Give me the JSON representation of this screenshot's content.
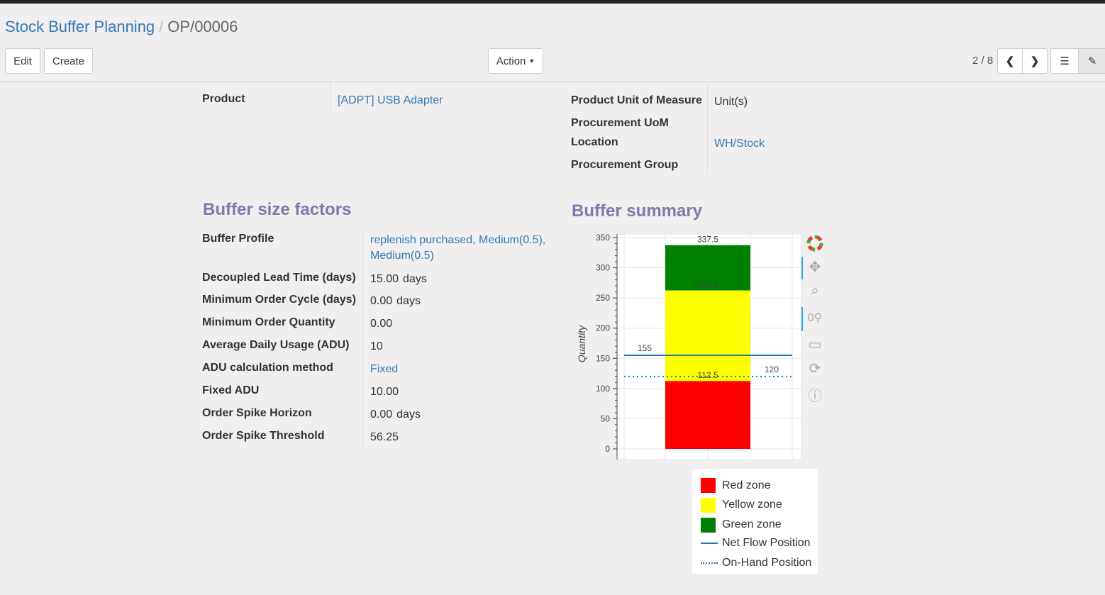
{
  "breadcrumb": {
    "parent": "Stock Buffer Planning",
    "current": "OP/00006"
  },
  "buttons": {
    "edit": "Edit",
    "create": "Create",
    "action": "Action"
  },
  "pager": {
    "value": "2 / 8"
  },
  "header_fields": {
    "product_label": "Product",
    "product_value": "[ADPT] USB Adapter",
    "uom_label": "Product Unit of Measure",
    "uom_value": "Unit(s)",
    "proc_uom_label": "Procurement UoM",
    "location_label": "Location",
    "location_value": "WH/Stock",
    "proc_group_label": "Procurement Group"
  },
  "factors": {
    "title": "Buffer size factors",
    "rows": [
      {
        "label": "Buffer Profile",
        "value": "replenish purchased, Medium(0.5), Medium(0.5)",
        "link": true
      },
      {
        "label": "Decoupled Lead Time (days)",
        "value": "15.00",
        "unit": "days"
      },
      {
        "label": "Minimum Order Cycle (days)",
        "value": "0.00",
        "unit": "days"
      },
      {
        "label": "Minimum Order Quantity",
        "value": "0.00"
      },
      {
        "label": "Average Daily Usage (ADU)",
        "value": "10"
      },
      {
        "label": "ADU calculation method",
        "value": "Fixed",
        "link": true
      },
      {
        "label": "Fixed ADU",
        "value": "10.00"
      },
      {
        "label": "Order Spike Horizon",
        "value": "0.00",
        "unit": "days"
      },
      {
        "label": "Order Spike Threshold",
        "value": "56.25"
      }
    ]
  },
  "summary": {
    "title": "Buffer summary"
  },
  "chart_data": {
    "type": "bar",
    "stacked": true,
    "ylabel": "Quantity",
    "ylim": [
      0,
      350
    ],
    "yticks": [
      "0",
      "50",
      "100",
      "150",
      "200",
      "250",
      "300",
      "350"
    ],
    "series": [
      {
        "name": "Red zone",
        "from": 0,
        "to": 112.5,
        "color": "#ff0000",
        "label": "112.5"
      },
      {
        "name": "Yellow zone",
        "from": 112.5,
        "to": 262.5,
        "color": "#ffff00",
        "label": "262.5"
      },
      {
        "name": "Green zone",
        "from": 262.5,
        "to": 337.5,
        "color": "#008000",
        "label": "337.5"
      }
    ],
    "lines": [
      {
        "name": "Net Flow Position",
        "value": 155,
        "label": "155",
        "style": "solid",
        "color": "#1f77b4"
      },
      {
        "name": "On-Hand Position",
        "value": 120,
        "label": "120",
        "style": "dotted",
        "color": "#1f77b4"
      }
    ],
    "grid": true,
    "legend": "bottom"
  },
  "toolbar_icons": [
    "bokeh-logo-icon",
    "pan-icon",
    "box-zoom-icon",
    "wheel-zoom-icon",
    "save-icon",
    "reset-icon",
    "help-icon"
  ]
}
